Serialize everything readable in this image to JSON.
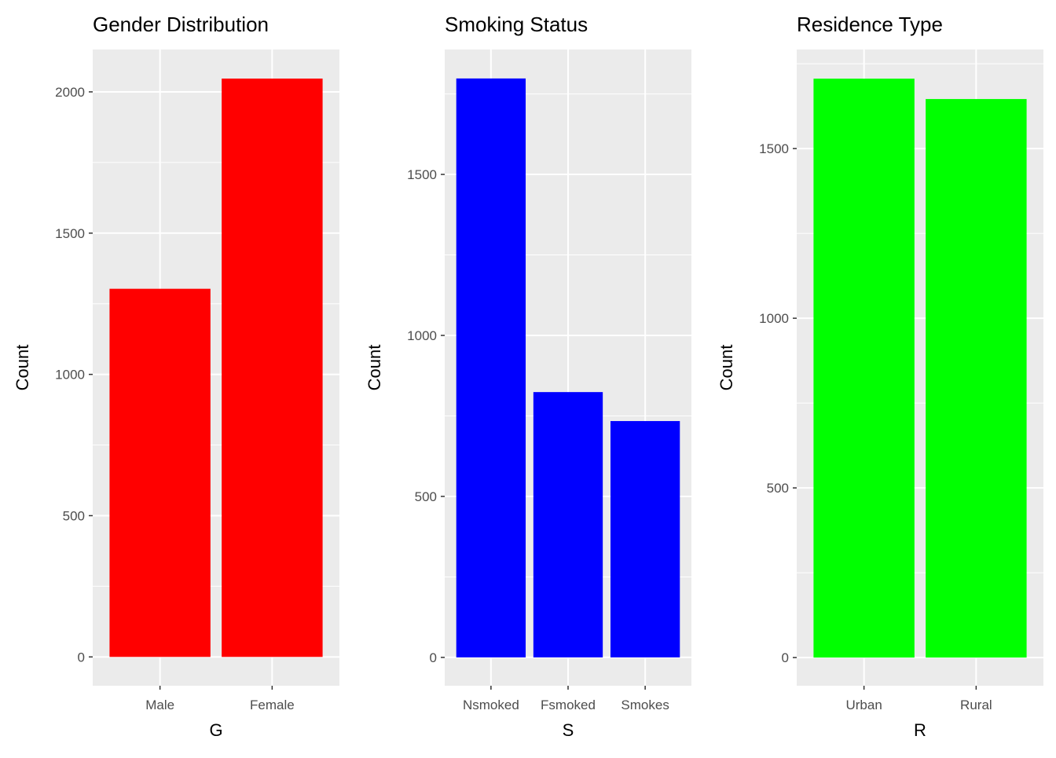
{
  "chart_data": [
    {
      "type": "bar",
      "title": "Gender Distribution",
      "xlabel": "G",
      "ylabel": "Count",
      "categories": [
        "Male",
        "Female"
      ],
      "values": [
        1303,
        2047
      ],
      "ylim": [
        -102,
        2150
      ],
      "yticks": [
        0,
        500,
        1000,
        1500,
        2000
      ],
      "grid": true,
      "color": "#FF0000"
    },
    {
      "type": "bar",
      "title": "Smoking Status",
      "xlabel": "S",
      "ylabel": "Count",
      "categories": [
        "Nsmoked",
        "Fsmoked",
        "Smokes"
      ],
      "values": [
        1798,
        824,
        734
      ],
      "ylim": [
        -88,
        1888
      ],
      "yticks": [
        0,
        500,
        1000,
        1500
      ],
      "grid": true,
      "color": "#0000FF"
    },
    {
      "type": "bar",
      "title": "Residence Type",
      "xlabel": "R",
      "ylabel": "Count",
      "categories": [
        "Urban",
        "Rural"
      ],
      "values": [
        1706,
        1646
      ],
      "ylim": [
        -83,
        1792
      ],
      "yticks": [
        0,
        500,
        1000,
        1500
      ],
      "grid": true,
      "color": "#00FF00"
    }
  ]
}
